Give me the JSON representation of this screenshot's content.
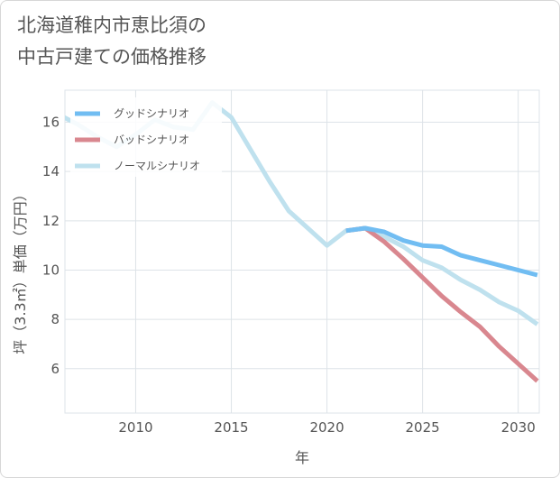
{
  "title_lines": [
    "北海道稚内市恵比須の",
    "中古戸建ての価格推移"
  ],
  "chart_data": {
    "type": "line",
    "title": "北海道稚内市恵比須の 中古戸建ての価格推移",
    "xlabel": "年",
    "ylabel": "坪（3.3㎡）単価（万円）",
    "xlim": [
      2006.3,
      2031.1
    ],
    "ylim": [
      4.2,
      17.3
    ],
    "x_ticks": [
      2010,
      2015,
      2020,
      2025,
      2030
    ],
    "y_ticks": [
      6,
      8,
      10,
      12,
      14,
      16
    ],
    "grid": true,
    "legend_position": "top-left",
    "series": [
      {
        "name": "グッドシナリオ",
        "color": "#71bdf2",
        "x": [
          2021,
          2022,
          2023,
          2024,
          2025,
          2026,
          2027,
          2028,
          2029,
          2030,
          2031
        ],
        "y": [
          11.6,
          11.7,
          11.55,
          11.2,
          11.0,
          10.95,
          10.6,
          10.4,
          10.2,
          10.0,
          9.8
        ]
      },
      {
        "name": "バッドシナリオ",
        "color": "#d9878f",
        "x": [
          2021,
          2022,
          2023,
          2024,
          2025,
          2026,
          2027,
          2028,
          2029,
          2030,
          2031
        ],
        "y": [
          11.6,
          11.7,
          11.15,
          10.45,
          9.7,
          8.95,
          8.3,
          7.7,
          6.9,
          6.2,
          5.5
        ]
      },
      {
        "name": "ノーマルシナリオ",
        "color": "#bfe1ee",
        "x": [
          2006,
          2007,
          2008,
          2009,
          2010,
          2011,
          2012,
          2013,
          2014,
          2015,
          2016,
          2017,
          2018,
          2019,
          2020,
          2021,
          2022,
          2023,
          2024,
          2025,
          2026,
          2027,
          2028,
          2029,
          2030,
          2031
        ],
        "y": [
          16.3,
          15.9,
          15.4,
          15.0,
          15.5,
          16.1,
          15.8,
          15.7,
          16.8,
          16.2,
          14.9,
          13.6,
          12.4,
          11.7,
          11.0,
          11.6,
          11.7,
          11.35,
          10.95,
          10.4,
          10.1,
          9.6,
          9.2,
          8.7,
          8.35,
          7.8
        ]
      }
    ]
  }
}
